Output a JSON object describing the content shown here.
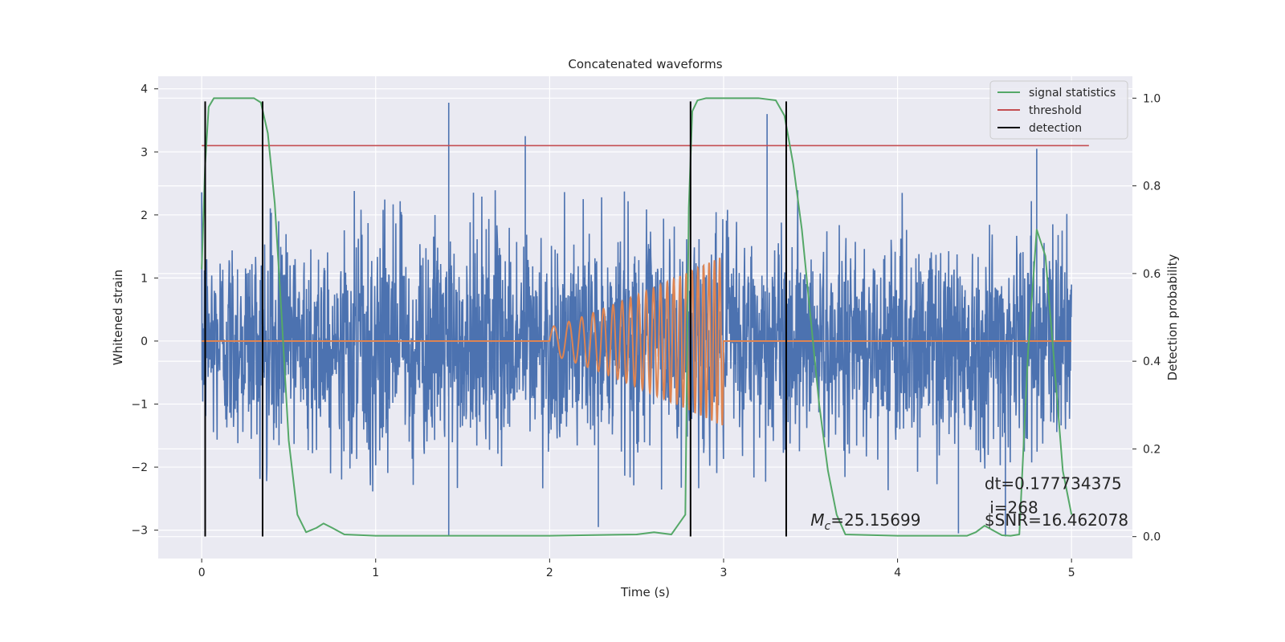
{
  "chart_data": {
    "type": "line",
    "title": "Concatenated waveforms",
    "xlabel": "Time (s)",
    "ylabel": "Whitened strain",
    "y2label": "Detection probability",
    "xlim": [
      -0.25,
      5.35
    ],
    "ylim": [
      -3.45,
      4.2
    ],
    "y2lim": [
      -0.05,
      1.05
    ],
    "xticks": [
      0,
      1,
      2,
      3,
      4,
      5
    ],
    "yticks": [
      -3,
      -2,
      -1,
      0,
      1,
      2,
      3,
      4
    ],
    "y2ticks": [
      0.0,
      0.2,
      0.4,
      0.6,
      0.8,
      1.0
    ],
    "y2tick_labels": [
      "0.0",
      "0.2",
      "0.4",
      "0.6",
      "0.8",
      "1.0"
    ],
    "grid": true,
    "legend_position": "top-right",
    "colors": {
      "background": "#eaeaf2",
      "grid": "#ffffff",
      "noise": "#4c72b0",
      "template": "#dd8452",
      "signal_statistics": "#55a868",
      "threshold": "#c44e52",
      "detection": "#000000"
    },
    "noise": {
      "x_range": [
        0,
        5
      ],
      "typical_abs_max": 2.4,
      "spikes": [
        {
          "x": 1.42,
          "y": 3.78
        },
        {
          "x": 3.25,
          "y": 3.6
        },
        {
          "x": 1.86,
          "y": 3.25
        },
        {
          "x": 4.8,
          "y": 3.05
        },
        {
          "x": 1.42,
          "y": -3.1
        },
        {
          "x": 2.28,
          "y": -2.95
        },
        {
          "x": 4.35,
          "y": -3.05
        },
        {
          "x": 4.62,
          "y": -3.1
        }
      ]
    },
    "series": [
      {
        "name": "signal statistics",
        "axis": "right",
        "x": [
          0.0,
          0.02,
          0.04,
          0.07,
          0.12,
          0.2,
          0.3,
          0.34,
          0.38,
          0.42,
          0.46,
          0.5,
          0.55,
          0.6,
          0.66,
          0.7,
          0.75,
          0.82,
          1.0,
          1.5,
          2.0,
          2.5,
          2.6,
          2.7,
          2.78,
          2.8,
          2.82,
          2.85,
          2.9,
          3.0,
          3.2,
          3.3,
          3.35,
          3.4,
          3.45,
          3.5,
          3.55,
          3.6,
          3.65,
          3.7,
          4.0,
          4.2,
          4.4,
          4.45,
          4.5,
          4.6,
          4.65,
          4.7,
          4.75,
          4.8,
          4.85,
          4.9,
          4.95,
          5.0
        ],
        "values": [
          0.61,
          0.85,
          0.98,
          1.0,
          1.0,
          1.0,
          1.0,
          0.99,
          0.92,
          0.76,
          0.5,
          0.22,
          0.05,
          0.01,
          0.02,
          0.03,
          0.02,
          0.005,
          0.002,
          0.002,
          0.002,
          0.005,
          0.01,
          0.005,
          0.05,
          0.75,
          0.97,
          0.995,
          1.0,
          1.0,
          1.0,
          0.995,
          0.96,
          0.85,
          0.7,
          0.5,
          0.3,
          0.15,
          0.05,
          0.005,
          0.002,
          0.002,
          0.002,
          0.01,
          0.025,
          0.003,
          0.002,
          0.005,
          0.42,
          0.7,
          0.64,
          0.4,
          0.15,
          0.05
        ]
      },
      {
        "name": "threshold",
        "axis": "left",
        "x": [
          0.0,
          5.1
        ],
        "values": [
          3.1,
          3.1
        ]
      },
      {
        "name": "detection",
        "axis": "left",
        "x": [
          0.02,
          0.35,
          2.81,
          3.36
        ],
        "ymin": -3.1,
        "ymax": 3.8
      },
      {
        "name": "template",
        "axis": "left",
        "x_range": [
          0,
          5
        ],
        "chirp_start": 2.0,
        "chirp_end": 3.0,
        "amplitude_start": 0.22,
        "amplitude_end": 1.35
      }
    ],
    "annotations": [
      {
        "text": "dt=0.177734375",
        "x": 4.5,
        "y": -2.35
      },
      {
        "text": " i=268",
        "x": 4.5,
        "y": -2.73
      },
      {
        "text": "$SNR=16.462078",
        "x": 4.5,
        "y": -2.93
      },
      {
        "text_main": "M",
        "text_sub": "c",
        "text_rest": "=25.15699",
        "x": 3.5,
        "y": -2.93
      }
    ]
  }
}
